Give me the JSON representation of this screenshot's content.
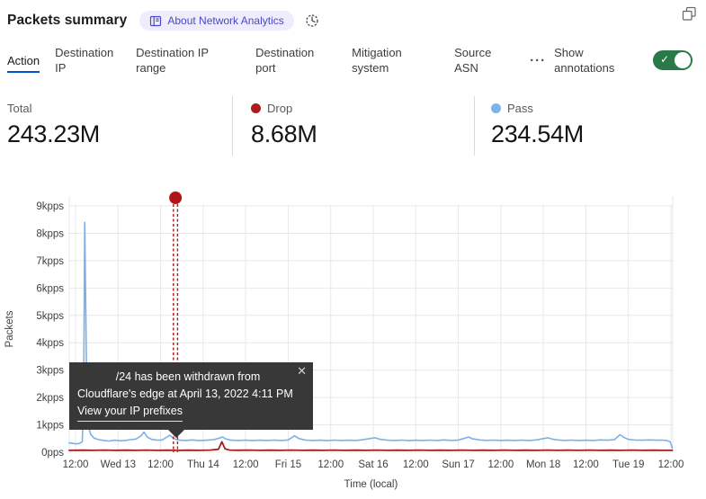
{
  "header": {
    "title": "Packets summary",
    "about_badge": "About Network Analytics"
  },
  "tabs": {
    "items": [
      {
        "label": "Action",
        "active": true
      },
      {
        "label": "Destination IP",
        "active": false
      },
      {
        "label": "Destination IP range",
        "active": false
      },
      {
        "label": "Destination port",
        "active": false
      },
      {
        "label": "Mitigation system",
        "active": false
      },
      {
        "label": "Source ASN",
        "active": false
      }
    ],
    "more_label": "···",
    "show_annotations_label": "Show annotations",
    "annotations_toggle_on": true
  },
  "stats": [
    {
      "label": "Total",
      "value": "243.23M",
      "dot_color": null
    },
    {
      "label": "Drop",
      "value": "8.68M",
      "dot_color": "#b11a1a"
    },
    {
      "label": "Pass",
      "value": "234.54M",
      "dot_color": "#7fb2e8"
    }
  ],
  "tooltip": {
    "line1": "/24 has been withdrawn from",
    "line2": "Cloudflare's edge at April 13, 2022 4:11 PM",
    "link_label": "View your IP prefixes",
    "close_label": "✕"
  },
  "colors": {
    "accent_blue": "#0053cf",
    "toggle_green": "#287a47",
    "pass_line": "#7cb0e8",
    "drop_line": "#a81c1c",
    "annotation_red": "#b11515",
    "grid": "#e8e8e8",
    "axis_text": "#3f3f3f"
  },
  "chart_data": {
    "type": "line",
    "title": "Packets summary",
    "xlabel": "Time (local)",
    "ylabel": "Packets",
    "x_unit": "hours since 2022-04-12 12:00 local",
    "xlim": [
      -1.8,
      168.5
    ],
    "ylim": [
      0,
      9000
    ],
    "grid": true,
    "y_ticks": [
      {
        "v": 0,
        "label": "0pps"
      },
      {
        "v": 1000,
        "label": "1kpps"
      },
      {
        "v": 2000,
        "label": "2kpps"
      },
      {
        "v": 3000,
        "label": "3kpps"
      },
      {
        "v": 4000,
        "label": "4kpps"
      },
      {
        "v": 5000,
        "label": "5kpps"
      },
      {
        "v": 6000,
        "label": "6kpps"
      },
      {
        "v": 7000,
        "label": "7kpps"
      },
      {
        "v": 8000,
        "label": "8kpps"
      },
      {
        "v": 9000,
        "label": "9kpps"
      }
    ],
    "x_ticks": [
      {
        "h": 0,
        "label": "12:00"
      },
      {
        "h": 12,
        "label": "Wed 13"
      },
      {
        "h": 24,
        "label": "12:00"
      },
      {
        "h": 36,
        "label": "Thu 14"
      },
      {
        "h": 48,
        "label": "12:00"
      },
      {
        "h": 60,
        "label": "Fri 15"
      },
      {
        "h": 72,
        "label": "12:00"
      },
      {
        "h": 84,
        "label": "Sat 16"
      },
      {
        "h": 96,
        "label": "12:00"
      },
      {
        "h": 108,
        "label": "Sun 17"
      },
      {
        "h": 120,
        "label": "12:00"
      },
      {
        "h": 132,
        "label": "Mon 18"
      },
      {
        "h": 144,
        "label": "12:00"
      },
      {
        "h": 156,
        "label": "Tue 19"
      },
      {
        "h": 168,
        "label": "12:00"
      }
    ],
    "series": [
      {
        "name": "Pass",
        "color": "#7cb0e8",
        "width": 1.6,
        "points": [
          [
            -1.8,
            340
          ],
          [
            0,
            310
          ],
          [
            1,
            320
          ],
          [
            1.9,
            380
          ],
          [
            2.3,
            2600
          ],
          [
            2.6,
            8400
          ],
          [
            2.9,
            5200
          ],
          [
            3.2,
            1600
          ],
          [
            3.7,
            900
          ],
          [
            4.3,
            650
          ],
          [
            5.2,
            520
          ],
          [
            6.5,
            460
          ],
          [
            8,
            430
          ],
          [
            9.5,
            410
          ],
          [
            11,
            440
          ],
          [
            12.5,
            420
          ],
          [
            14,
            430
          ],
          [
            15.5,
            460
          ],
          [
            17,
            480
          ],
          [
            18.5,
            600
          ],
          [
            19.3,
            740
          ],
          [
            20.2,
            560
          ],
          [
            21.5,
            470
          ],
          [
            23,
            440
          ],
          [
            24.5,
            450
          ],
          [
            25.8,
            560
          ],
          [
            26.6,
            620
          ],
          [
            27.5,
            520
          ],
          [
            28.3,
            470
          ],
          [
            29.5,
            440
          ],
          [
            31,
            430
          ],
          [
            33,
            450
          ],
          [
            35,
            425
          ],
          [
            37,
            440
          ],
          [
            39,
            460
          ],
          [
            40.6,
            520
          ],
          [
            41.5,
            560
          ],
          [
            42.5,
            480
          ],
          [
            44,
            440
          ],
          [
            46,
            430
          ],
          [
            48,
            445
          ],
          [
            50,
            425
          ],
          [
            52,
            440
          ],
          [
            54,
            430
          ],
          [
            56,
            445
          ],
          [
            58,
            430
          ],
          [
            60,
            450
          ],
          [
            61.8,
            600
          ],
          [
            63,
            500
          ],
          [
            65,
            445
          ],
          [
            67,
            430
          ],
          [
            69,
            440
          ],
          [
            71,
            425
          ],
          [
            73,
            445
          ],
          [
            75,
            430
          ],
          [
            77,
            440
          ],
          [
            79,
            430
          ],
          [
            81,
            455
          ],
          [
            83,
            500
          ],
          [
            84.5,
            530
          ],
          [
            86,
            470
          ],
          [
            88,
            440
          ],
          [
            90,
            430
          ],
          [
            92,
            445
          ],
          [
            94,
            425
          ],
          [
            96,
            440
          ],
          [
            98,
            430
          ],
          [
            100,
            445
          ],
          [
            102,
            430
          ],
          [
            104,
            450
          ],
          [
            106,
            435
          ],
          [
            108,
            445
          ],
          [
            110,
            520
          ],
          [
            110.9,
            560
          ],
          [
            112,
            490
          ],
          [
            114,
            450
          ],
          [
            116,
            435
          ],
          [
            118,
            445
          ],
          [
            120,
            430
          ],
          [
            122,
            440
          ],
          [
            124,
            430
          ],
          [
            126,
            445
          ],
          [
            128,
            430
          ],
          [
            130,
            450
          ],
          [
            132,
            500
          ],
          [
            133.3,
            530
          ],
          [
            134.5,
            480
          ],
          [
            136,
            450
          ],
          [
            138,
            435
          ],
          [
            140,
            445
          ],
          [
            142,
            430
          ],
          [
            144,
            440
          ],
          [
            146,
            430
          ],
          [
            148,
            450
          ],
          [
            150,
            440
          ],
          [
            152,
            455
          ],
          [
            153.6,
            640
          ],
          [
            154.8,
            540
          ],
          [
            156,
            470
          ],
          [
            158,
            445
          ],
          [
            160,
            440
          ],
          [
            162,
            450
          ],
          [
            164,
            440
          ],
          [
            165.5,
            445
          ],
          [
            166.8,
            430
          ],
          [
            167.8,
            380
          ],
          [
            168.4,
            150
          ]
        ]
      },
      {
        "name": "Drop",
        "color": "#a81c1c",
        "width": 1.8,
        "points": [
          [
            -1.8,
            70
          ],
          [
            2,
            75
          ],
          [
            5,
            70
          ],
          [
            8,
            78
          ],
          [
            11,
            70
          ],
          [
            14,
            76
          ],
          [
            17,
            70
          ],
          [
            20,
            78
          ],
          [
            23,
            70
          ],
          [
            26,
            76
          ],
          [
            29,
            70
          ],
          [
            32,
            75
          ],
          [
            35,
            70
          ],
          [
            38,
            80
          ],
          [
            40.3,
            110
          ],
          [
            41.3,
            380
          ],
          [
            42.2,
            120
          ],
          [
            43.5,
            80
          ],
          [
            46,
            72
          ],
          [
            49,
            78
          ],
          [
            52,
            70
          ],
          [
            55,
            76
          ],
          [
            58,
            70
          ],
          [
            61,
            78
          ],
          [
            64,
            70
          ],
          [
            67,
            75
          ],
          [
            70,
            70
          ],
          [
            73,
            78
          ],
          [
            76,
            70
          ],
          [
            79,
            75
          ],
          [
            82,
            70
          ],
          [
            85,
            78
          ],
          [
            88,
            70
          ],
          [
            91,
            75
          ],
          [
            94,
            70
          ],
          [
            97,
            78
          ],
          [
            100,
            70
          ],
          [
            103,
            75
          ],
          [
            106,
            70
          ],
          [
            109,
            78
          ],
          [
            112,
            70
          ],
          [
            115,
            75
          ],
          [
            118,
            70
          ],
          [
            121,
            78
          ],
          [
            124,
            70
          ],
          [
            127,
            75
          ],
          [
            130,
            70
          ],
          [
            133,
            78
          ],
          [
            136,
            70
          ],
          [
            139,
            75
          ],
          [
            142,
            70
          ],
          [
            145,
            78
          ],
          [
            148,
            70
          ],
          [
            151,
            75
          ],
          [
            154,
            70
          ],
          [
            157,
            78
          ],
          [
            160,
            70
          ],
          [
            163,
            75
          ],
          [
            166,
            70
          ],
          [
            168.4,
            68
          ]
        ]
      }
    ],
    "annotation": {
      "x_hours": 28.2,
      "date_label": "April 13, 2022 4:11 PM",
      "text": "/24 has been withdrawn from Cloudflare's edge at April 13, 2022 4:11 PM",
      "link": "View your IP prefixes",
      "color": "#b11515"
    },
    "legend": [
      {
        "name": "Total",
        "value": "243.23M"
      },
      {
        "name": "Drop",
        "value": "8.68M",
        "color": "#b11a1a"
      },
      {
        "name": "Pass",
        "value": "234.54M",
        "color": "#7fb2e8"
      }
    ],
    "legend_position": "top"
  }
}
